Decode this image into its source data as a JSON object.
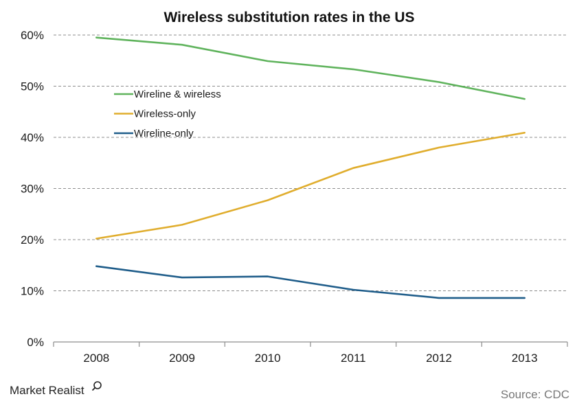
{
  "chart_data": {
    "type": "line",
    "title": "Wireless substitution rates in the US",
    "categories": [
      "2008",
      "2009",
      "2010",
      "2011",
      "2012",
      "2013"
    ],
    "series": [
      {
        "name": "Wireline & wireless",
        "color": "#5fb35c",
        "values": [
          59.5,
          58.1,
          54.9,
          53.3,
          50.8,
          47.5
        ]
      },
      {
        "name": "Wireless-only",
        "color": "#e0ad2d",
        "values": [
          20.2,
          22.9,
          27.7,
          34.0,
          38.0,
          40.9
        ]
      },
      {
        "name": "Wireline-only",
        "color": "#1f5d8a",
        "values": [
          14.8,
          12.6,
          12.8,
          10.2,
          8.6,
          8.6
        ]
      }
    ],
    "ylim": [
      0,
      60
    ],
    "yticks": [
      0,
      10,
      20,
      30,
      40,
      50,
      60
    ],
    "ytick_labels": [
      "0%",
      "10%",
      "20%",
      "30%",
      "40%",
      "50%",
      "60%"
    ],
    "grid": "horizontal dashed",
    "legend": "upper-left inside plot"
  },
  "footer": {
    "logo_text": "Market Realist",
    "source": "Source: CDC"
  }
}
